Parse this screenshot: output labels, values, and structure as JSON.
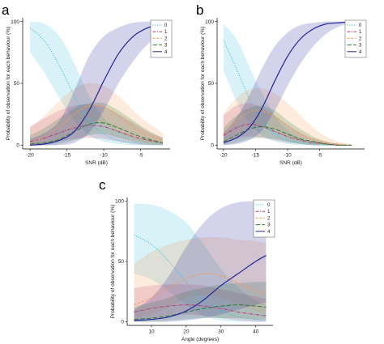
{
  "chart_data": [
    {
      "panel": "a",
      "type": "line",
      "xlabel": "SNR (dB)",
      "ylabel": "Probability of observation for each behaviour (%)",
      "xlim": [
        -21,
        -1
      ],
      "ylim": [
        -3,
        103
      ],
      "x_ticks": [
        -20,
        -15,
        -10,
        -5
      ],
      "x_tick_labels": [
        "-20",
        "-15",
        "-10",
        "-5"
      ],
      "y_ticks": [
        0,
        50,
        100
      ],
      "y_tick_labels": [
        "0",
        "50",
        "100"
      ],
      "legend_position": "top-right",
      "legend_entries": [
        "0",
        "1",
        "2",
        "3",
        "4"
      ],
      "x": [
        -20,
        -18,
        -16,
        -14,
        -12,
        -10,
        -8,
        -6,
        -4,
        -2
      ],
      "series": [
        {
          "name": "0",
          "color": "#3fc0d8",
          "dash": "dotted",
          "values": [
            95,
            84,
            64,
            40,
            20,
            9,
            4,
            2,
            1,
            1
          ],
          "lower": [
            75,
            58,
            38,
            20,
            8,
            3,
            1,
            0,
            0,
            0
          ],
          "upper": [
            100,
            98,
            88,
            66,
            40,
            22,
            12,
            7,
            4,
            2
          ]
        },
        {
          "name": "1",
          "color": "#b03a7a",
          "dash": "dashdot",
          "values": [
            3,
            6,
            10,
            14,
            16,
            15,
            11,
            7,
            4,
            2
          ],
          "lower": [
            0,
            1,
            3,
            5,
            6,
            5,
            3,
            1,
            0,
            0
          ],
          "upper": [
            15,
            22,
            28,
            32,
            33,
            31,
            25,
            18,
            11,
            6
          ]
        },
        {
          "name": "2",
          "color": "#f39a5a",
          "dash": "dashed",
          "values": [
            2,
            7,
            15,
            25,
            32,
            31,
            24,
            15,
            8,
            4
          ],
          "lower": [
            0,
            1,
            5,
            12,
            18,
            17,
            11,
            5,
            2,
            1
          ],
          "upper": [
            14,
            24,
            36,
            46,
            50,
            48,
            40,
            28,
            18,
            10
          ]
        },
        {
          "name": "3",
          "color": "#2e7d32",
          "dash": "longdash",
          "values": [
            1,
            2,
            5,
            11,
            17,
            18,
            14,
            9,
            5,
            2
          ],
          "lower": [
            0,
            0,
            1,
            4,
            8,
            9,
            6,
            3,
            1,
            0
          ],
          "upper": [
            8,
            14,
            22,
            30,
            34,
            34,
            28,
            20,
            12,
            6
          ]
        },
        {
          "name": "4",
          "color": "#23239a",
          "dash": "solid",
          "values": [
            0,
            1,
            4,
            11,
            28,
            52,
            74,
            88,
            95,
            98
          ],
          "lower": [
            0,
            0,
            0,
            2,
            10,
            28,
            50,
            68,
            82,
            90
          ],
          "upper": [
            5,
            10,
            20,
            44,
            72,
            88,
            95,
            99,
            100,
            100
          ]
        }
      ]
    },
    {
      "panel": "b",
      "type": "line",
      "xlabel": "SNR (dB)",
      "ylabel": "Probability of observation for each behaviour (%)",
      "xlim": [
        -21,
        2
      ],
      "ylim": [
        -3,
        103
      ],
      "x_ticks": [
        -20,
        -15,
        -10,
        -5
      ],
      "x_tick_labels": [
        "-20",
        "-15",
        "-10",
        "-5"
      ],
      "y_ticks": [
        0,
        50,
        100
      ],
      "y_tick_labels": [
        "0",
        "50",
        "100"
      ],
      "legend_position": "top-right",
      "legend_entries": [
        "0",
        "1",
        "2",
        "3",
        "4"
      ],
      "x": [
        -20,
        -18,
        -16,
        -14,
        -12,
        -10,
        -8,
        -6,
        -4,
        -2,
        0
      ],
      "series": [
        {
          "name": "0",
          "color": "#3fc0d8",
          "dash": "dotted",
          "values": [
            85,
            62,
            38,
            20,
            9,
            4,
            2,
            1,
            0,
            0,
            0
          ],
          "lower": [
            60,
            36,
            18,
            8,
            3,
            1,
            0,
            0,
            0,
            0,
            0
          ],
          "upper": [
            98,
            86,
            64,
            42,
            24,
            12,
            6,
            3,
            1,
            0,
            0
          ]
        },
        {
          "name": "1",
          "color": "#b03a7a",
          "dash": "dashdot",
          "values": [
            8,
            14,
            17,
            15,
            11,
            7,
            4,
            2,
            1,
            0,
            0
          ],
          "lower": [
            1,
            5,
            7,
            6,
            4,
            2,
            1,
            0,
            0,
            0,
            0
          ],
          "upper": [
            24,
            32,
            34,
            30,
            24,
            16,
            10,
            5,
            3,
            1,
            0
          ]
        },
        {
          "name": "2",
          "color": "#f39a5a",
          "dash": "dashed",
          "values": [
            9,
            19,
            27,
            28,
            23,
            16,
            9,
            5,
            2,
            1,
            0
          ],
          "lower": [
            2,
            8,
            14,
            15,
            11,
            6,
            3,
            1,
            0,
            0,
            0
          ],
          "upper": [
            26,
            38,
            45,
            46,
            42,
            34,
            24,
            14,
            7,
            3,
            1
          ]
        },
        {
          "name": "3",
          "color": "#2e7d32",
          "dash": "longdash",
          "values": [
            3,
            8,
            13,
            15,
            13,
            9,
            5,
            3,
            1,
            0,
            0
          ],
          "lower": [
            0,
            2,
            5,
            6,
            5,
            3,
            1,
            0,
            0,
            0,
            0
          ],
          "upper": [
            14,
            24,
            30,
            32,
            28,
            20,
            13,
            7,
            3,
            1,
            0
          ]
        },
        {
          "name": "4",
          "color": "#23239a",
          "dash": "solid",
          "values": [
            2,
            6,
            14,
            30,
            52,
            72,
            86,
            94,
            98,
            99,
            100
          ],
          "lower": [
            0,
            1,
            4,
            12,
            28,
            48,
            66,
            80,
            90,
            96,
            98
          ],
          "upper": [
            10,
            22,
            40,
            62,
            80,
            91,
            97,
            99,
            100,
            100,
            100
          ]
        }
      ]
    },
    {
      "panel": "c",
      "type": "line",
      "xlabel": "Angle (degrees)",
      "ylabel": "Probability of observation for each behaviour (%)",
      "xlim": [
        3,
        45
      ],
      "ylim": [
        -3,
        103
      ],
      "x_ticks": [
        10,
        20,
        30,
        40
      ],
      "x_tick_labels": [
        "10",
        "20",
        "30",
        "40"
      ],
      "y_ticks": [
        0,
        50,
        100
      ],
      "y_tick_labels": [
        "0",
        "50",
        "100"
      ],
      "legend_position": "top-right",
      "legend_entries": [
        "0",
        "1",
        "2",
        "3",
        "4"
      ],
      "x": [
        5,
        10,
        15,
        20,
        25,
        30,
        35,
        40,
        43
      ],
      "series": [
        {
          "name": "0",
          "color": "#3fc0d8",
          "dash": "dotted",
          "values": [
            72,
            64,
            50,
            33,
            18,
            9,
            4,
            2,
            1
          ],
          "lower": [
            40,
            35,
            25,
            14,
            5,
            1,
            0,
            0,
            0
          ],
          "upper": [
            98,
            97,
            92,
            82,
            64,
            44,
            28,
            18,
            14
          ]
        },
        {
          "name": "1",
          "color": "#b03a7a",
          "dash": "dashdot",
          "values": [
            8,
            11,
            13,
            14,
            13,
            11,
            8,
            6,
            5
          ],
          "lower": [
            1,
            3,
            5,
            6,
            5,
            3,
            1,
            0,
            0
          ],
          "upper": [
            28,
            30,
            31,
            31,
            30,
            27,
            24,
            21,
            19
          ]
        },
        {
          "name": "2",
          "color": "#f39a5a",
          "dash": "dashed",
          "values": [
            14,
            20,
            28,
            36,
            40,
            38,
            32,
            26,
            22
          ],
          "lower": [
            3,
            6,
            12,
            20,
            22,
            20,
            14,
            9,
            7
          ],
          "upper": [
            48,
            58,
            64,
            68,
            70,
            70,
            68,
            67,
            65
          ]
        },
        {
          "name": "3",
          "color": "#2e7d32",
          "dash": "longdash",
          "values": [
            2,
            3,
            5,
            8,
            11,
            13,
            14,
            13,
            12
          ],
          "lower": [
            0,
            0,
            1,
            2,
            3,
            3,
            3,
            2,
            2
          ],
          "upper": [
            12,
            16,
            20,
            25,
            28,
            31,
            32,
            33,
            33
          ]
        },
        {
          "name": "4",
          "color": "#23239a",
          "dash": "solid",
          "values": [
            1,
            2,
            4,
            9,
            18,
            30,
            40,
            50,
            55
          ],
          "lower": [
            0,
            0,
            0,
            1,
            3,
            6,
            10,
            14,
            16
          ],
          "upper": [
            10,
            20,
            38,
            62,
            82,
            94,
            99,
            100,
            100
          ]
        }
      ]
    }
  ]
}
